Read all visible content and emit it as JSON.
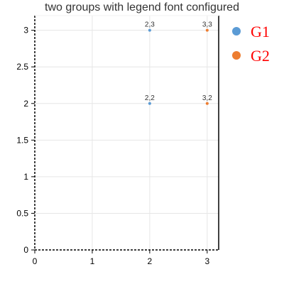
{
  "chart_data": {
    "type": "scatter",
    "title": "two groups with legend font configured",
    "xlabel": "",
    "ylabel": "",
    "xlim": [
      0,
      3.2
    ],
    "ylim": [
      0,
      3.2
    ],
    "x_ticks": [
      0,
      1,
      2,
      3
    ],
    "x_tick_labels": [
      "0",
      "1",
      "2",
      "3"
    ],
    "y_ticks": [
      0,
      0.5,
      1,
      1.5,
      2,
      2.5,
      3
    ],
    "y_tick_labels": [
      "0",
      "0.5",
      "1",
      "1.5",
      "2",
      "2.5",
      "3"
    ],
    "grid": true,
    "legend_position": "right",
    "legend_color": "#ff0000",
    "series": [
      {
        "name": "G1",
        "color": "#5b9bd5",
        "points": [
          {
            "x": 2,
            "y": 2,
            "label": "2,2"
          },
          {
            "x": 2,
            "y": 3,
            "label": "2,3"
          }
        ]
      },
      {
        "name": "G2",
        "color": "#ed7d31",
        "points": [
          {
            "x": 3,
            "y": 2,
            "label": "3,2"
          },
          {
            "x": 3,
            "y": 3,
            "label": "3,3"
          }
        ]
      }
    ]
  }
}
